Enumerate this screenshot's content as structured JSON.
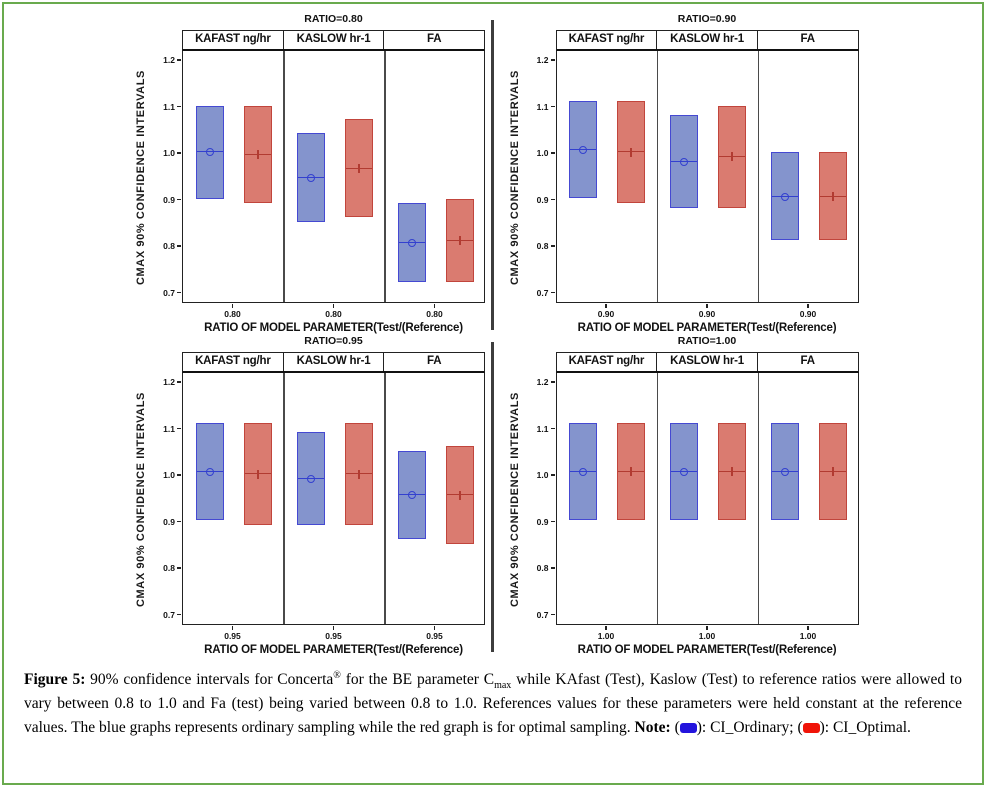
{
  "page": {
    "border_color": "#69aa4e",
    "background": "#ffffff"
  },
  "chart_data": {
    "type": "grouped_ci_box",
    "ylabel": "CMAX 90% CONFIDENCE INTERVALS",
    "xlabel": "RATIO OF MODEL PARAMETER(Test/(Reference)",
    "columns": [
      "KAFAST ng/hr",
      "KASLOW hr-1",
      "FA"
    ],
    "y_ticks": [
      1.2,
      1.1,
      1.0,
      0.9,
      0.8,
      0.7
    ],
    "ylim": [
      0.68,
      1.22
    ],
    "grid": false,
    "series": [
      {
        "name": "CI_Ordinary",
        "fill": "#8494cd",
        "edge": "#4549d2",
        "mid_color": "#3340cf",
        "marker": "circle"
      },
      {
        "name": "CI_Optimal",
        "fill": "#da7b70",
        "edge": "#c1453c",
        "mid_color": "#b23b31",
        "marker": "plus"
      }
    ],
    "panels": [
      {
        "title": "RATIO=0.80",
        "x_tick": "0.80",
        "boxes": [
          {
            "column": "KAFAST ng/hr",
            "ordinary": {
              "low": 0.9,
              "mid": 1.0,
              "high": 1.1
            },
            "optimal": {
              "low": 0.89,
              "mid": 0.995,
              "high": 1.1
            }
          },
          {
            "column": "KASLOW hr-1",
            "ordinary": {
              "low": 0.85,
              "mid": 0.945,
              "high": 1.04
            },
            "optimal": {
              "low": 0.86,
              "mid": 0.965,
              "high": 1.07
            }
          },
          {
            "column": "FA",
            "ordinary": {
              "low": 0.72,
              "mid": 0.805,
              "high": 0.89
            },
            "optimal": {
              "low": 0.72,
              "mid": 0.81,
              "high": 0.9
            }
          }
        ]
      },
      {
        "title": "RATIO=0.90",
        "x_tick": "0.90",
        "boxes": [
          {
            "column": "KAFAST ng/hr",
            "ordinary": {
              "low": 0.9,
              "mid": 1.005,
              "high": 1.11
            },
            "optimal": {
              "low": 0.89,
              "mid": 1.0,
              "high": 1.11
            }
          },
          {
            "column": "KASLOW hr-1",
            "ordinary": {
              "low": 0.88,
              "mid": 0.98,
              "high": 1.08
            },
            "optimal": {
              "low": 0.88,
              "mid": 0.99,
              "high": 1.1
            }
          },
          {
            "column": "FA",
            "ordinary": {
              "low": 0.81,
              "mid": 0.905,
              "high": 1.0
            },
            "optimal": {
              "low": 0.81,
              "mid": 0.905,
              "high": 1.0
            }
          }
        ]
      },
      {
        "title": "RATIO=0.95",
        "x_tick": "0.95",
        "boxes": [
          {
            "column": "KAFAST ng/hr",
            "ordinary": {
              "low": 0.9,
              "mid": 1.005,
              "high": 1.11
            },
            "optimal": {
              "low": 0.89,
              "mid": 1.0,
              "high": 1.11
            }
          },
          {
            "column": "KASLOW hr-1",
            "ordinary": {
              "low": 0.89,
              "mid": 0.99,
              "high": 1.09
            },
            "optimal": {
              "low": 0.89,
              "mid": 1.0,
              "high": 1.11
            }
          },
          {
            "column": "FA",
            "ordinary": {
              "low": 0.86,
              "mid": 0.955,
              "high": 1.05
            },
            "optimal": {
              "low": 0.85,
              "mid": 0.955,
              "high": 1.06
            }
          }
        ]
      },
      {
        "title": "RATIO=1.00",
        "x_tick": "1.00",
        "boxes": [
          {
            "column": "KAFAST ng/hr",
            "ordinary": {
              "low": 0.9,
              "mid": 1.005,
              "high": 1.11
            },
            "optimal": {
              "low": 0.9,
              "mid": 1.005,
              "high": 1.11
            }
          },
          {
            "column": "KASLOW hr-1",
            "ordinary": {
              "low": 0.9,
              "mid": 1.005,
              "high": 1.11
            },
            "optimal": {
              "low": 0.9,
              "mid": 1.005,
              "high": 1.11
            }
          },
          {
            "column": "FA",
            "ordinary": {
              "low": 0.9,
              "mid": 1.005,
              "high": 1.11
            },
            "optimal": {
              "low": 0.9,
              "mid": 1.005,
              "high": 1.11
            }
          }
        ]
      }
    ]
  },
  "caption": {
    "segments": [
      {
        "t": "Figure 5:",
        "b": true
      },
      {
        "t": " 90% confidence intervals for Concerta"
      },
      {
        "t": "®",
        "sup": true
      },
      {
        "t": " for the BE parameter C"
      },
      {
        "t": "max",
        "sub": true
      },
      {
        "t": " while KAfast (Test), Kaslow (Test) to reference ratios were allowed to vary between 0.8 to 1.0 and Fa (test) being varied between 0.8 to 1.0. References values for these parameters were held constant at the reference values. The blue graphs represents ordinary sampling while the red graph is for optimal sampling. "
      },
      {
        "t": "Note:",
        "b": true
      },
      {
        "t": " ("
      },
      {
        "swatch": "#2314dd",
        "name": "ci-ordinary-legend-swatch"
      },
      {
        "t": "): CI_Ordinary; ("
      },
      {
        "swatch": "#f01408",
        "name": "ci-optimal-legend-swatch"
      },
      {
        "t": "): CI_Optimal."
      }
    ]
  }
}
